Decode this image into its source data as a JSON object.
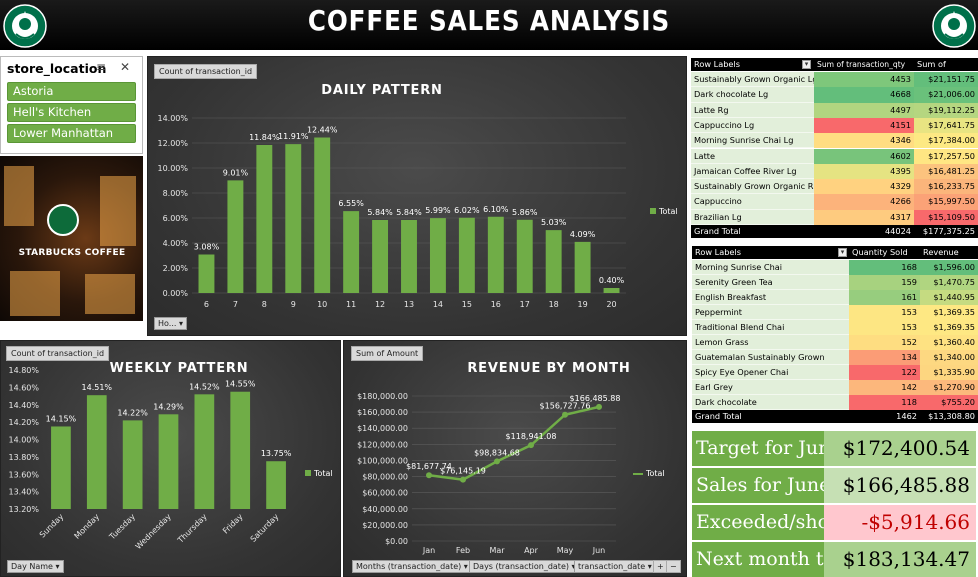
{
  "header": {
    "title": "COFFEE SALES ANALYSIS"
  },
  "slicer": {
    "title": "store_location",
    "items": [
      "Astoria",
      "Hell's Kitchen",
      "Lower Manhattan"
    ]
  },
  "photo": {
    "sign": "STARBUCKS COFFEE"
  },
  "colors": {
    "bar": "#70ad47",
    "header_bg": "#000000",
    "panel_bg": "#3c3c3c",
    "kpi_green": "#70ad47",
    "kpi_light": "#c6e0b4",
    "kpi_pink": "#ffc7ce",
    "negative": "#c00000"
  },
  "daily": {
    "field_button": "Count of transaction_id",
    "title": "DAILY PATTERN",
    "legend": "Total",
    "dropdown": "Ho...",
    "chart_data": {
      "type": "bar",
      "categories": [
        "6",
        "7",
        "8",
        "9",
        "10",
        "11",
        "12",
        "13",
        "14",
        "15",
        "16",
        "17",
        "18",
        "19",
        "20"
      ],
      "values": [
        3.08,
        9.01,
        11.84,
        11.91,
        12.44,
        6.55,
        5.84,
        5.84,
        5.99,
        6.02,
        6.1,
        5.86,
        5.03,
        4.09,
        0.4
      ],
      "labels": [
        "3.08%",
        "9.01%",
        "11.84%",
        "11.91%",
        "12.44%",
        "6.55%",
        "5.84%",
        "5.84%",
        "5.99%",
        "6.02%",
        "6.10%",
        "5.86%",
        "5.03%",
        "4.09%",
        "0.40%"
      ],
      "yticks": [
        "0.00%",
        "2.00%",
        "4.00%",
        "6.00%",
        "8.00%",
        "10.00%",
        "12.00%",
        "14.00%"
      ],
      "ylim": [
        0,
        14
      ],
      "grid": true,
      "legend_position": "right"
    }
  },
  "weekly": {
    "field_button": "Count of transaction_id",
    "title": "WEEKLY PATTERN",
    "legend": "Total",
    "dropdown": "Day Name",
    "chart_data": {
      "type": "bar",
      "categories": [
        "Sunday",
        "Monday",
        "Tuesday",
        "Wednesday",
        "Thursday",
        "Friday",
        "Saturday"
      ],
      "values": [
        14.15,
        14.51,
        14.22,
        14.29,
        14.52,
        14.55,
        13.75
      ],
      "labels": [
        "14.15%",
        "14.51%",
        "14.22%",
        "14.29%",
        "14.52%",
        "14.55%",
        "13.75%"
      ],
      "yticks": [
        "13.20%",
        "13.40%",
        "13.60%",
        "13.80%",
        "14.00%",
        "14.20%",
        "14.40%",
        "14.60%",
        "14.80%"
      ],
      "ylim": [
        13.2,
        14.8
      ],
      "grid": false,
      "legend_position": "right"
    }
  },
  "revenue": {
    "field_button": "Sum of Amount",
    "title": "REVENUE BY MONTH",
    "legend": "Total",
    "dropdowns": [
      "Months (transaction_date)",
      "Days (transaction_date)",
      "transaction_date"
    ],
    "controls": [
      "+",
      "−"
    ],
    "chart_data": {
      "type": "line",
      "categories": [
        "Jan",
        "Feb",
        "Mar",
        "Apr",
        "May",
        "Jun"
      ],
      "values": [
        81677.74,
        76145.19,
        98834.68,
        118941.08,
        156727.76,
        166485.88
      ],
      "labels": [
        "$81,677.74",
        "$76,145.19",
        "$98,834.68",
        "$118,941.08",
        "$156,727.76",
        "$166,485.88"
      ],
      "yticks": [
        "$0.00",
        "$20,000.00",
        "$40,000.00",
        "$60,000.00",
        "$80,000.00",
        "$100,000.00",
        "$120,000.00",
        "$140,000.00",
        "$160,000.00",
        "$180,000.00"
      ],
      "ylim": [
        0,
        180000
      ],
      "grid": true,
      "legend_position": "right"
    }
  },
  "pivot1": {
    "headers": [
      "Row Labels",
      "Sum of transaction_qty",
      "Sum of Amount"
    ],
    "rows": [
      {
        "label": "Sustainably Grown Organic Lg",
        "qty": "4453",
        "amt": "$21,151.75",
        "qc": "#7ec77b",
        "ac": "#63be7b"
      },
      {
        "label": "Dark chocolate Lg",
        "qty": "4668",
        "amt": "$21,006.00",
        "qc": "#63be7b",
        "ac": "#6ac17b"
      },
      {
        "label": "Latte Rg",
        "qty": "4497",
        "amt": "$19,112.25",
        "qc": "#b1d580",
        "ac": "#b5d680"
      },
      {
        "label": "Cappuccino Lg",
        "qty": "4151",
        "amt": "$17,641.75",
        "qc": "#f8696b",
        "ac": "#e8e482"
      },
      {
        "label": "Morning Sunrise Chai Lg",
        "qty": "4346",
        "amt": "$17,384.00",
        "qc": "#ffdd82",
        "ac": "#fde983"
      },
      {
        "label": "Latte",
        "qty": "4602",
        "amt": "$17,257.50",
        "qc": "#78c47b",
        "ac": "#ffe683"
      },
      {
        "label": "Jamaican Coffee River Lg",
        "qty": "4395",
        "amt": "$16,481.25",
        "qc": "#e5e382",
        "ac": "#fcc37e"
      },
      {
        "label": "Sustainably Grown Organic Rg",
        "qty": "4329",
        "amt": "$16,233.75",
        "qc": "#ffd280",
        "ac": "#fbb57b"
      },
      {
        "label": "Cappuccino",
        "qty": "4266",
        "amt": "$15,997.50",
        "qc": "#fcb37b",
        "ac": "#fba277"
      },
      {
        "label": "Brazilian Lg",
        "qty": "4317",
        "amt": "$15,109.50",
        "qc": "#fecb7f",
        "ac": "#f8696b"
      }
    ],
    "total": {
      "label": "Grand Total",
      "qty": "44024",
      "amt": "$177,375.25"
    }
  },
  "pivot2": {
    "headers": [
      "Row Labels",
      "Quantity Sold",
      "Revenue"
    ],
    "rows": [
      {
        "label": "Morning Sunrise Chai",
        "qty": "168",
        "amt": "$1,596.00",
        "qc": "#63be7b",
        "ac": "#63be7b"
      },
      {
        "label": "Serenity Green Tea",
        "qty": "159",
        "amt": "$1,470.75",
        "qc": "#a7d27f",
        "ac": "#b0d580"
      },
      {
        "label": "English Breakfast",
        "qty": "161",
        "amt": "$1,440.95",
        "qc": "#97cd7e",
        "ac": "#c5db81"
      },
      {
        "label": "Peppermint",
        "qty": "153",
        "amt": "$1,369.35",
        "qc": "#fde683",
        "ac": "#fee883"
      },
      {
        "label": "Traditional Blend Chai",
        "qty": "153",
        "amt": "$1,369.35",
        "qc": "#fde683",
        "ac": "#fee883"
      },
      {
        "label": "Lemon Grass",
        "qty": "152",
        "amt": "$1,360.40",
        "qc": "#fedd81",
        "ac": "#fee282"
      },
      {
        "label": "Guatemalan Sustainably Grown",
        "qty": "134",
        "amt": "$1,340.00",
        "qc": "#fb9c76",
        "ac": "#fdd881"
      },
      {
        "label": "Spicy Eye Opener Chai",
        "qty": "122",
        "amt": "$1,335.90",
        "qc": "#f8696b",
        "ac": "#fdd680"
      },
      {
        "label": "Earl Grey",
        "qty": "142",
        "amt": "$1,270.90",
        "qc": "#fcb77c",
        "ac": "#fcb97c"
      },
      {
        "label": "Dark chocolate",
        "qty": "118",
        "amt": "$755.20",
        "qc": "#f8696b",
        "ac": "#f8696b"
      }
    ],
    "total": {
      "label": "Grand Total",
      "qty": "1462",
      "amt": "$13,308.80"
    }
  },
  "kpis": [
    {
      "label": "Target for June",
      "value": "$172,400.54",
      "bg": "#a9d18e",
      "color": "#000000"
    },
    {
      "label": "Sales for June",
      "value": "$166,485.88",
      "bg": "#c6e0b4",
      "color": "#000000"
    },
    {
      "label": "Exceeded/short",
      "value": "-$5,914.66",
      "bg": "#ffc7ce",
      "color": "#c00000"
    },
    {
      "label": "Next month target",
      "value": "$183,134.47",
      "bg": "#a9d18e",
      "color": "#000000"
    }
  ]
}
